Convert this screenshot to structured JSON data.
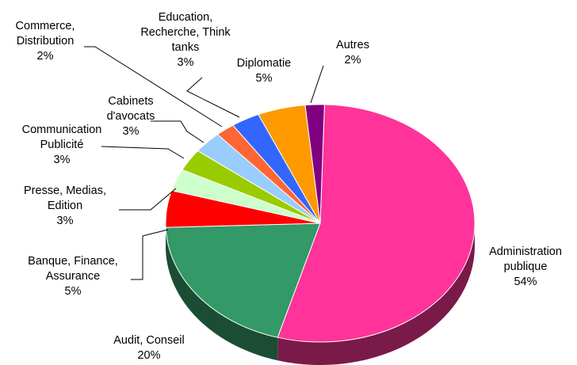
{
  "chart_data": {
    "type": "pie",
    "title": "",
    "slices": [
      {
        "lines": [
          "Administration",
          "publique"
        ],
        "pct": "54%",
        "value": 54,
        "color": "#ff3399",
        "side": "#7a1a48"
      },
      {
        "lines": [
          "Audit, Conseil"
        ],
        "pct": "20%",
        "value": 20,
        "color": "#339966",
        "side": "#1a4d33"
      },
      {
        "lines": [
          "Banque, Finance,",
          "Assurance"
        ],
        "pct": "5%",
        "value": 5,
        "color": "#ff0000",
        "side": "#800000"
      },
      {
        "lines": [
          "Presse, Medias,",
          "Edition"
        ],
        "pct": "3%",
        "value": 3,
        "color": "#ccffcc",
        "side": "#668066"
      },
      {
        "lines": [
          "Communication",
          "Publicité"
        ],
        "pct": "3%",
        "value": 3,
        "color": "#99cc00",
        "side": "#4d6600"
      },
      {
        "lines": [
          "Cabinets",
          "d'avocats"
        ],
        "pct": "3%",
        "value": 3,
        "color": "#99ccff",
        "side": "#4d6680"
      },
      {
        "lines": [
          "Commerce,",
          "Distribution"
        ],
        "pct": "2%",
        "value": 2,
        "color": "#ff6633",
        "side": "#80331a"
      },
      {
        "lines": [
          "Education,",
          "Recherche, Think",
          "tanks"
        ],
        "pct": "3%",
        "value": 3,
        "color": "#3366ff",
        "side": "#1a3380"
      },
      {
        "lines": [
          "Diplomatie"
        ],
        "pct": "5%",
        "value": 5,
        "color": "#ff9900",
        "side": "#804d00"
      },
      {
        "lines": [
          "Autres"
        ],
        "pct": "2%",
        "value": 2,
        "color": "#800080",
        "side": "#400040"
      }
    ]
  }
}
